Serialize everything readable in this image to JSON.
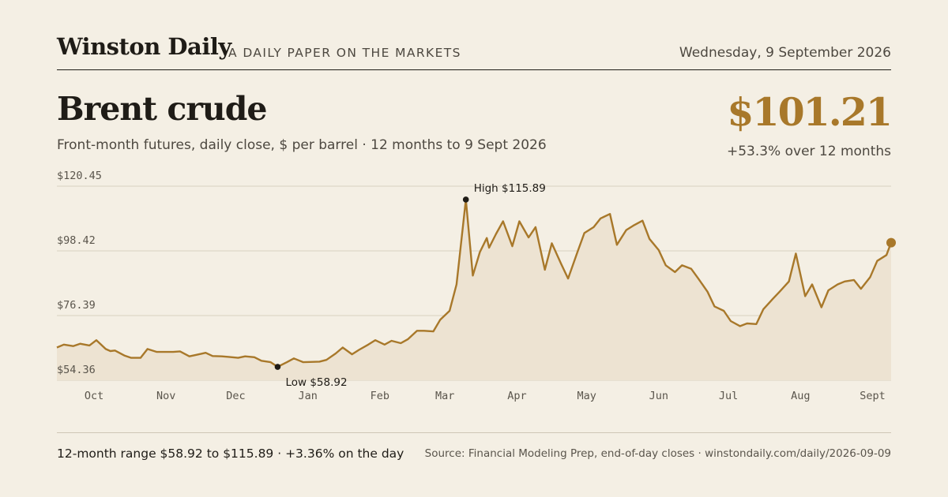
{
  "masthead": {
    "brand": "Winston Daily",
    "tagline": "A DAILY PAPER ON THE MARKETS",
    "date": "Wednesday, 9 September 2026"
  },
  "headline": {
    "title": "Brent crude",
    "subtitle": "Front-month futures, daily close, $ per barrel · 12 months to 9 Sept 2026"
  },
  "summary": {
    "price": "$101.21",
    "change": "+53.3% over 12 months"
  },
  "footer": {
    "range_text": "12-month range $58.92 to $115.89 · +3.36% on the day",
    "source_text": "Source: Financial Modeling Prep, end-of-day closes · winstondaily.com/daily/2026-09-09"
  },
  "colors": {
    "accent": "#a8782a",
    "area_fill": "#ede3d2",
    "grid": "#d8d0bf",
    "marker": "#1f1c17"
  },
  "chart_data": {
    "type": "area",
    "title": "Brent crude",
    "ylabel": "$ per barrel",
    "ylim": [
      54.36,
      120.45
    ],
    "yticks": [
      54.36,
      76.39,
      98.42,
      120.45
    ],
    "ytick_labels": [
      "$54.36",
      "$76.39",
      "$98.42",
      "$120.45"
    ],
    "xlim": [
      "2025-09-15",
      "2026-09-09"
    ],
    "xticks": [
      "2025-10-01",
      "2025-11-01",
      "2025-12-01",
      "2026-01-01",
      "2026-02-01",
      "2026-03-01",
      "2026-04-01",
      "2026-05-01",
      "2026-06-01",
      "2026-07-01",
      "2026-08-01",
      "2026-09-01"
    ],
    "xtick_labels": [
      "Oct",
      "Nov",
      "Dec",
      "Jan",
      "Feb",
      "Mar",
      "Apr",
      "May",
      "Jun",
      "Jul",
      "Aug",
      "Sept"
    ],
    "grid": true,
    "series": [
      {
        "x": [
          "2025-09-15",
          "2025-09-18",
          "2025-09-22",
          "2025-09-25",
          "2025-09-29",
          "2025-10-02",
          "2025-10-06",
          "2025-10-08",
          "2025-10-10",
          "2025-10-14",
          "2025-10-17",
          "2025-10-21",
          "2025-10-24",
          "2025-10-28",
          "2025-10-31",
          "2025-11-04",
          "2025-11-07",
          "2025-11-11",
          "2025-11-14",
          "2025-11-18",
          "2025-11-21",
          "2025-11-25",
          "2025-11-28",
          "2025-12-02",
          "2025-12-05",
          "2025-12-09",
          "2025-12-12",
          "2025-12-16",
          "2025-12-19",
          "2025-12-23",
          "2025-12-26",
          "2025-12-30",
          "2026-01-02",
          "2026-01-06",
          "2026-01-09",
          "2026-01-13",
          "2026-01-16",
          "2026-01-20",
          "2026-01-23",
          "2026-01-27",
          "2026-01-30",
          "2026-02-03",
          "2026-02-06",
          "2026-02-10",
          "2026-02-13",
          "2026-02-17",
          "2026-02-20",
          "2026-02-24",
          "2026-02-27",
          "2026-03-03",
          "2026-03-06",
          "2026-03-10",
          "2026-03-13",
          "2026-03-16",
          "2026-03-19",
          "2026-03-20",
          "2026-03-23",
          "2026-03-26",
          "2026-03-30",
          "2026-04-02",
          "2026-04-06",
          "2026-04-09",
          "2026-04-13",
          "2026-04-16",
          "2026-04-20",
          "2026-04-23",
          "2026-04-27",
          "2026-04-30",
          "2026-05-04",
          "2026-05-07",
          "2026-05-11",
          "2026-05-14",
          "2026-05-18",
          "2026-05-21",
          "2026-05-25",
          "2026-05-28",
          "2026-06-01",
          "2026-06-04",
          "2026-06-08",
          "2026-06-11",
          "2026-06-15",
          "2026-06-18",
          "2026-06-22",
          "2026-06-25",
          "2026-06-29",
          "2026-07-02",
          "2026-07-06",
          "2026-07-09",
          "2026-07-13",
          "2026-07-16",
          "2026-07-20",
          "2026-07-23",
          "2026-07-27",
          "2026-07-30",
          "2026-08-03",
          "2026-08-06",
          "2026-08-10",
          "2026-08-13",
          "2026-08-17",
          "2026-08-20",
          "2026-08-24",
          "2026-08-27",
          "2026-08-31",
          "2026-09-03",
          "2026-09-07",
          "2026-09-09"
        ],
        "y": [
          65.5,
          66.5,
          66.0,
          66.8,
          66.2,
          68.0,
          65.0,
          64.3,
          64.5,
          62.8,
          62.0,
          62.0,
          65.0,
          64.0,
          64.0,
          64.0,
          64.2,
          62.5,
          63.0,
          63.7,
          62.6,
          62.5,
          62.3,
          62.0,
          62.5,
          62.2,
          61.0,
          60.5,
          58.92,
          60.5,
          61.8,
          60.5,
          60.6,
          60.7,
          61.3,
          63.5,
          65.5,
          63.2,
          64.7,
          66.5,
          68.0,
          66.5,
          67.8,
          67.0,
          68.3,
          71.2,
          71.2,
          71.0,
          75.0,
          78.0,
          87.0,
          115.89,
          90.0,
          98.0,
          102.8,
          99.5,
          104.2,
          108.5,
          100.0,
          108.5,
          103.0,
          106.5,
          92.0,
          101.0,
          94.0,
          89.0,
          98.0,
          104.5,
          106.5,
          109.5,
          111.0,
          100.5,
          105.5,
          107.0,
          108.7,
          102.5,
          98.7,
          93.5,
          91.2,
          93.5,
          92.3,
          89.0,
          84.5,
          79.5,
          78.0,
          74.5,
          72.8,
          73.7,
          73.5,
          78.5,
          82.0,
          84.5,
          88.0,
          97.5,
          83.0,
          87.0,
          79.2,
          85.0,
          87.0,
          88.0,
          88.5,
          85.5,
          89.5,
          95.0,
          97.0,
          101.21
        ]
      }
    ],
    "annotations": [
      {
        "label": "High $115.89",
        "x": "2026-03-10",
        "y": 115.89
      },
      {
        "label": "Low $58.92",
        "x": "2025-12-19",
        "y": 58.92
      }
    ]
  }
}
